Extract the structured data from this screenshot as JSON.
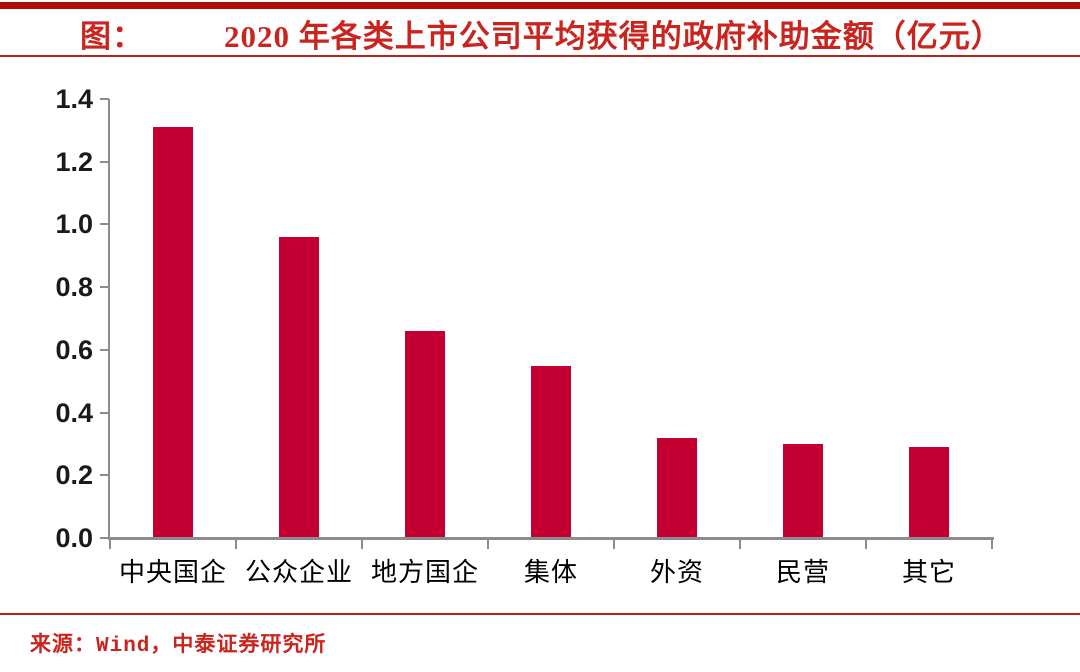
{
  "header": {
    "label": "图：",
    "title": "2020 年各类上市公司平均获得的政府补助金额（亿元）"
  },
  "footer": {
    "source": "来源：Wind，中泰证券研究所"
  },
  "colors": {
    "bar_red": "#C40033",
    "accent_red": "#CA241E",
    "band_red": "#B00B0B",
    "rule_red": "#B82218",
    "axis_gray": "#8C8C8C"
  },
  "chart_data": {
    "type": "bar",
    "title": "2020 年各类上市公司平均获得的政府补助金额（亿元）",
    "categories": [
      "中央国企",
      "公众企业",
      "地方国企",
      "集体",
      "外资",
      "民营",
      "其它"
    ],
    "values": [
      1.31,
      0.96,
      0.66,
      0.55,
      0.32,
      0.3,
      0.29
    ],
    "xlabel": "",
    "ylabel": "",
    "ylim": [
      0,
      1.4
    ],
    "yticks": [
      0.0,
      0.2,
      0.4,
      0.6,
      0.8,
      1.0,
      1.2,
      1.4
    ],
    "ytick_labels": [
      "0.0",
      "0.2",
      "0.4",
      "0.6",
      "0.8",
      "1.0",
      "1.2",
      "1.4"
    ],
    "grid": false,
    "legend": false,
    "bar_color": "#C40033"
  }
}
